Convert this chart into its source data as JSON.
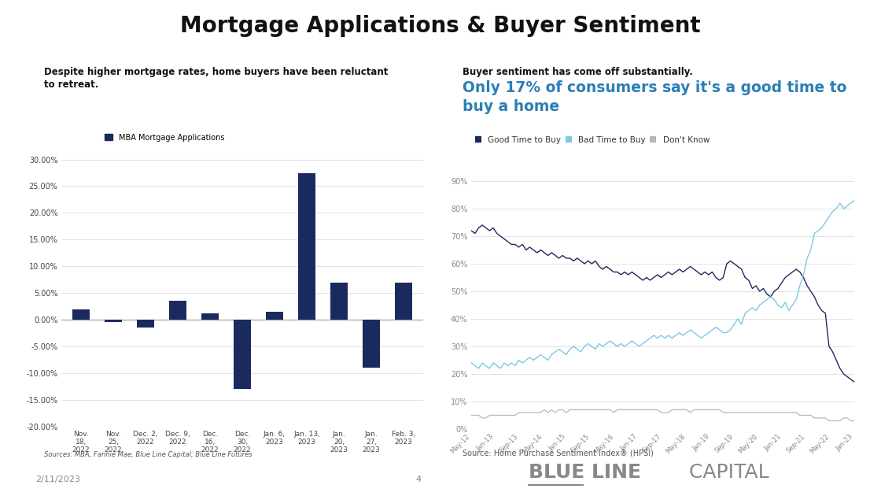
{
  "title": "Mortgage Applications & Buyer Sentiment",
  "left_subtitle_line1": "Despite higher mortgage rates, home buyers have been reluctant",
  "left_subtitle_line2": "to retreat.",
  "right_subtitle_bold": "Buyer sentiment has come off substantially.",
  "right_subtitle_color_line1": "Only 17% of consumers say it's a good time to",
  "right_subtitle_color_line2": "buy a home",
  "bar_labels": [
    "Nov.\n18,\n2022",
    "Nov.\n25,\n2022",
    "Dec. 2,\n2022",
    "Dec. 9,\n2022",
    "Dec.\n16,\n2022",
    "Dec.\n30,\n2022",
    "Jan. 6,\n2023",
    "Jan. 13,\n2023",
    "Jan.\n20,\n2023",
    "Jan.\n27,\n2023",
    "Feb. 3,\n2023"
  ],
  "bar_values": [
    2.0,
    -0.5,
    -1.5,
    3.5,
    1.2,
    -13.0,
    1.5,
    27.5,
    7.0,
    -9.0,
    7.0
  ],
  "bar_color": "#1a2a5e",
  "bar_legend_label": "MBA Mortgage Applications",
  "ylim_left": [
    -20,
    32
  ],
  "yticks_left": [
    -20,
    -15,
    -10,
    -5,
    0,
    5,
    10,
    15,
    20,
    25,
    30
  ],
  "right_legend": [
    {
      "label": "Good Time to Buy",
      "color": "#1a2a5e"
    },
    {
      "label": "Bad Time to Buy",
      "color": "#7ec8e3"
    },
    {
      "label": "Don't Know",
      "color": "#b8b8b8"
    }
  ],
  "source_left": "Sources: MBA, Fannie Mae, Blue Line Capital, Blue Line Futures",
  "source_right": "Source: Home Purchase Sentiment Index® (HPSI)",
  "date_label": "2/11/2023",
  "page_label": "4",
  "good_time": [
    72,
    71,
    73,
    74,
    73,
    72,
    73,
    71,
    70,
    69,
    68,
    67,
    67,
    66,
    67,
    65,
    66,
    65,
    64,
    65,
    64,
    63,
    64,
    63,
    62,
    63,
    62,
    62,
    61,
    62,
    61,
    60,
    61,
    60,
    61,
    59,
    58,
    59,
    58,
    57,
    57,
    56,
    57,
    56,
    57,
    56,
    55,
    54,
    55,
    54,
    55,
    56,
    55,
    56,
    57,
    56,
    57,
    58,
    57,
    58,
    59,
    58,
    57,
    56,
    57,
    56,
    57,
    55,
    54,
    55,
    60,
    61,
    60,
    59,
    58,
    55,
    54,
    51,
    52,
    50,
    51,
    49,
    48,
    50,
    51,
    53,
    55,
    56,
    57,
    58,
    57,
    55,
    52,
    50,
    48,
    45,
    43,
    42,
    30,
    28,
    25,
    22,
    20,
    19,
    18,
    17
  ],
  "bad_time": [
    24,
    23,
    22,
    24,
    23,
    22,
    24,
    23,
    22,
    24,
    23,
    24,
    23,
    25,
    24,
    25,
    26,
    25,
    26,
    27,
    26,
    25,
    27,
    28,
    29,
    28,
    27,
    29,
    30,
    29,
    28,
    30,
    31,
    30,
    29,
    31,
    30,
    31,
    32,
    31,
    30,
    31,
    30,
    31,
    32,
    31,
    30,
    31,
    32,
    33,
    34,
    33,
    34,
    33,
    34,
    33,
    34,
    35,
    34,
    35,
    36,
    35,
    34,
    33,
    34,
    35,
    36,
    37,
    36,
    35,
    35,
    36,
    38,
    40,
    38,
    42,
    43,
    44,
    43,
    45,
    46,
    47,
    48,
    47,
    45,
    44,
    46,
    43,
    45,
    47,
    52,
    56,
    62,
    65,
    71,
    72,
    73,
    75,
    77,
    79,
    80,
    82,
    80,
    81,
    82,
    83
  ],
  "dont_know": [
    5,
    5,
    5,
    4,
    4,
    5,
    5,
    5,
    5,
    5,
    5,
    5,
    5,
    6,
    6,
    6,
    6,
    6,
    6,
    6,
    7,
    6,
    7,
    6,
    7,
    7,
    6,
    7,
    7,
    7,
    7,
    7,
    7,
    7,
    7,
    7,
    7,
    7,
    7,
    6,
    7,
    7,
    7,
    7,
    7,
    7,
    7,
    7,
    7,
    7,
    7,
    7,
    6,
    6,
    6,
    7,
    7,
    7,
    7,
    7,
    6,
    7,
    7,
    7,
    7,
    7,
    7,
    7,
    7,
    6,
    6,
    6,
    6,
    6,
    6,
    6,
    6,
    6,
    6,
    6,
    6,
    6,
    6,
    6,
    6,
    6,
    6,
    6,
    6,
    6,
    5,
    5,
    5,
    5,
    4,
    4,
    4,
    4,
    3,
    3,
    3,
    3,
    4,
    4,
    3,
    3
  ],
  "x_tick_labels_right": [
    "May-12",
    "Jan-13",
    "Sep-13",
    "May-14",
    "Jan-15",
    "Sep-15",
    "May-16",
    "Jan-17",
    "Sep-17",
    "May-18",
    "Jan-19",
    "Sep-19",
    "May-20",
    "Jan-21",
    "Sep-21",
    "May-22",
    "Jan-23"
  ],
  "background_color": "#ffffff",
  "brand_color_blue": "#888888",
  "brand_color_dark": "#888888",
  "brand_underline_color": "#888888"
}
